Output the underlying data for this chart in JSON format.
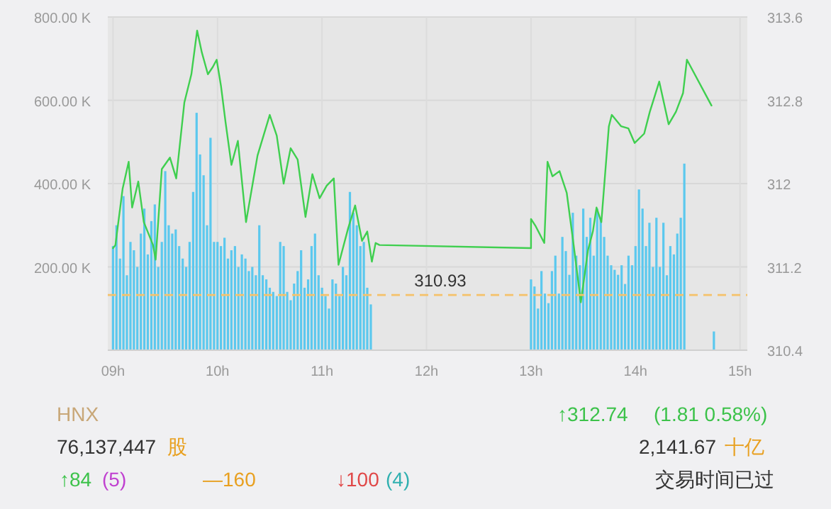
{
  "chart_data": {
    "type": "bar",
    "xlim": [
      8.95,
      15.07
    ],
    "xticks": [
      {
        "value": 9,
        "label": "09h"
      },
      {
        "value": 10,
        "label": "10h"
      },
      {
        "value": 11,
        "label": "11h"
      },
      {
        "value": 12,
        "label": "12h"
      },
      {
        "value": 13,
        "label": "13h"
      },
      {
        "value": 14,
        "label": "14h"
      },
      {
        "value": 15,
        "label": "15h"
      }
    ],
    "ylim": [
      0,
      800000
    ],
    "yticks": [
      {
        "value": 200000,
        "label": "200.00 K"
      },
      {
        "value": 400000,
        "label": "400.00 K"
      },
      {
        "value": 600000,
        "label": "600.00 K"
      },
      {
        "value": 800000,
        "label": "800.00 K"
      }
    ],
    "y2lim": [
      310.4,
      313.6
    ],
    "y2ticks": [
      310.4,
      311.2,
      312,
      312.8,
      313.6
    ],
    "grid": true,
    "series": [
      {
        "color": "#5bc8ee",
        "x": [
          9,
          9.033,
          9.067,
          9.1,
          9.133,
          9.167,
          9.2,
          9.233,
          9.267,
          9.3,
          9.333,
          9.367,
          9.4,
          9.433,
          9.467,
          9.5,
          9.533,
          9.567,
          9.6,
          9.633,
          9.667,
          9.7,
          9.733,
          9.767,
          9.8,
          9.833,
          9.867,
          9.9,
          9.933,
          9.967,
          10,
          10.033,
          10.067,
          10.1,
          10.133,
          10.167,
          10.2,
          10.233,
          10.267,
          10.3,
          10.333,
          10.367,
          10.4,
          10.433,
          10.467,
          10.5,
          10.533,
          10.567,
          10.6,
          10.633,
          10.667,
          10.7,
          10.733,
          10.767,
          10.8,
          10.833,
          10.867,
          10.9,
          10.933,
          10.967,
          11,
          11.033,
          11.067,
          11.1,
          11.133,
          11.167,
          11.2,
          11.233,
          11.267,
          11.3,
          11.333,
          11.367,
          11.4,
          11.433,
          11.467,
          13,
          13.033,
          13.067,
          13.1,
          13.133,
          13.167,
          13.2,
          13.233,
          13.267,
          13.3,
          13.333,
          13.367,
          13.4,
          13.433,
          13.467,
          13.5,
          13.533,
          13.567,
          13.6,
          13.633,
          13.667,
          13.7,
          13.733,
          13.767,
          13.8,
          13.833,
          13.867,
          13.9,
          13.933,
          13.967,
          14,
          14.033,
          14.067,
          14.1,
          14.133,
          14.167,
          14.2,
          14.233,
          14.267,
          14.3,
          14.333,
          14.367,
          14.4,
          14.433,
          14.467,
          14.75
        ],
        "values": [
          250000,
          300000,
          220000,
          370000,
          180000,
          260000,
          240000,
          200000,
          280000,
          340000,
          230000,
          310000,
          350000,
          200000,
          260000,
          430000,
          300000,
          280000,
          290000,
          250000,
          220000,
          200000,
          260000,
          380000,
          570000,
          470000,
          420000,
          300000,
          510000,
          260000,
          260000,
          250000,
          270000,
          220000,
          240000,
          250000,
          200000,
          230000,
          220000,
          190000,
          200000,
          180000,
          300000,
          180000,
          170000,
          150000,
          140000,
          130000,
          260000,
          250000,
          140000,
          120000,
          160000,
          190000,
          240000,
          150000,
          170000,
          250000,
          280000,
          180000,
          150000,
          130000,
          100000,
          170000,
          160000,
          130000,
          200000,
          180000,
          380000,
          330000,
          300000,
          250000,
          260000,
          150000,
          110000,
          170000,
          153000,
          100000,
          190000,
          136000,
          113000,
          190000,
          227000,
          136000,
          272000,
          238000,
          181000,
          330000,
          227000,
          204000,
          340000,
          272000,
          318000,
          227000,
          340000,
          318000,
          272000,
          227000,
          204000,
          193000,
          181000,
          204000,
          159000,
          227000,
          204000,
          250000,
          386000,
          340000,
          250000,
          306000,
          200000,
          318000,
          200000,
          306000,
          180000,
          250000,
          230000,
          280000,
          318000,
          448000,
          45000
        ]
      },
      {
        "type": "line",
        "axis": "y2",
        "color": "#3fcf4f",
        "x": [
          9,
          9.023,
          9.092,
          9.15,
          9.183,
          9.242,
          9.295,
          9.383,
          9.408,
          9.467,
          9.545,
          9.605,
          9.683,
          9.75,
          9.805,
          9.85,
          9.908,
          9.955,
          9.992,
          10.033,
          10.077,
          10.133,
          10.195,
          10.273,
          10.383,
          10.5,
          10.567,
          10.633,
          10.7,
          10.767,
          10.842,
          10.908,
          10.977,
          11.045,
          11.113,
          11.158,
          11.25,
          11.317,
          11.383,
          11.433,
          11.477,
          11.513,
          11.55,
          13,
          13,
          13.045,
          13.127,
          13.158,
          13.205,
          13.273,
          13.342,
          13.408,
          13.477,
          13.545,
          13.592,
          13.627,
          13.673,
          13.745,
          13.773,
          13.863,
          13.932,
          13.992,
          14.083,
          14.137,
          14.227,
          14.317,
          14.387,
          14.455,
          14.492,
          14.727
        ],
        "values": [
          311.38,
          311.41,
          311.95,
          312.21,
          311.77,
          312.02,
          311.63,
          311.41,
          311.27,
          312.14,
          312.25,
          312.05,
          312.78,
          313.05,
          313.47,
          313.26,
          313.05,
          313.12,
          313.19,
          312.94,
          312.59,
          312.18,
          312.41,
          311.63,
          312.27,
          312.66,
          312.46,
          312,
          312.34,
          312.23,
          311.68,
          312.09,
          311.86,
          311.98,
          312.05,
          311.22,
          311.57,
          311.79,
          311.45,
          311.54,
          311.25,
          311.43,
          311.41,
          311.38,
          311.66,
          311.59,
          311.43,
          312.21,
          312.07,
          312.12,
          311.91,
          311.41,
          310.86,
          311.36,
          311.54,
          311.77,
          311.63,
          312.55,
          312.66,
          312.55,
          312.53,
          312.39,
          312.48,
          312.69,
          312.98,
          312.57,
          312.69,
          312.87,
          313.19,
          312.75
        ]
      }
    ],
    "ref_lines": [
      {
        "axis": "y2",
        "value": 310.93,
        "label": "310.93",
        "color": "#f5c26b",
        "line_style": "dashed"
      }
    ],
    "annotations": [
      "HNX",
      "76,137,447",
      "股",
      "↑312.74",
      "(1.81  0.58%)",
      "2,141.67",
      "十亿",
      "↑84",
      "(5)",
      "—160",
      "↓100",
      "(4)",
      "交易时间已过"
    ]
  }
}
